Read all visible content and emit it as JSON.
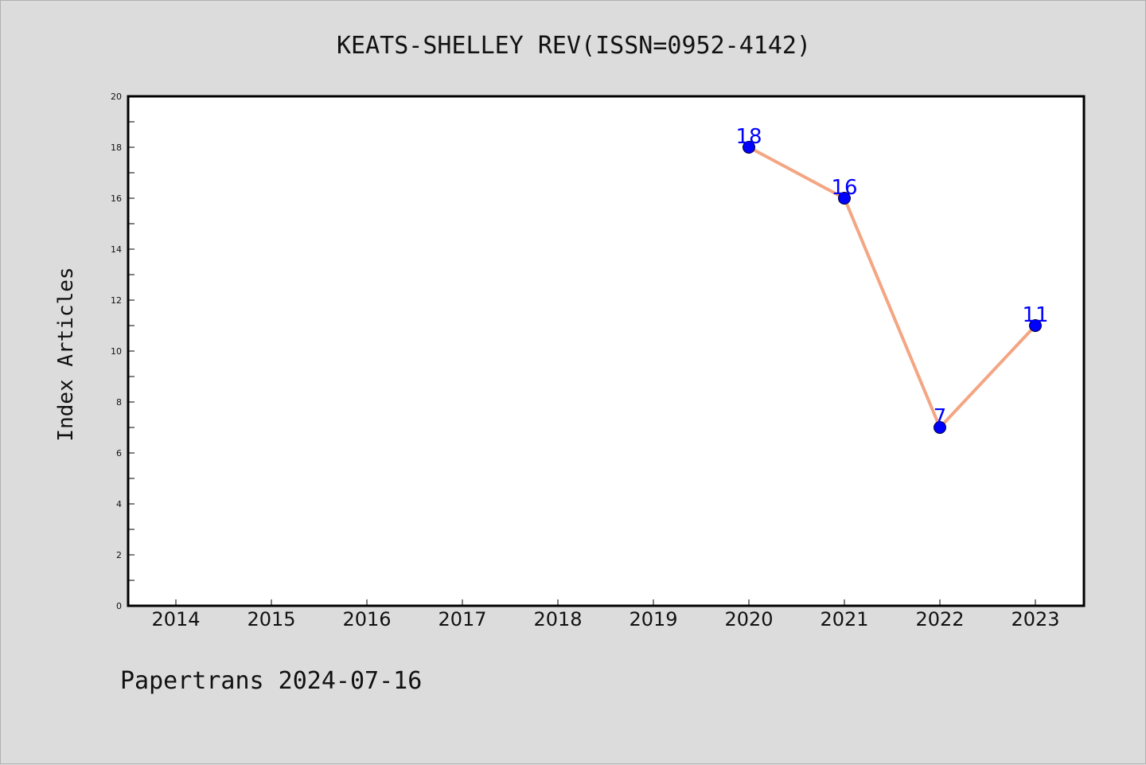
{
  "chart_data": {
    "type": "line",
    "title": "KEATS-SHELLEY REV(ISSN=0952-4142)",
    "xlabel": "",
    "ylabel": "Index Articles",
    "categories": [
      "2014",
      "2015",
      "2016",
      "2017",
      "2018",
      "2019",
      "2020",
      "2021",
      "2022",
      "2023"
    ],
    "series": [
      {
        "x": [
          "2020",
          "2021",
          "2022",
          "2023"
        ],
        "values": [
          18,
          16,
          7,
          11
        ]
      }
    ],
    "ylim": [
      0,
      20
    ],
    "yticks": [
      0,
      2,
      4,
      6,
      8,
      10,
      12,
      14,
      16,
      18,
      20
    ],
    "grid": false,
    "legend": "none",
    "colors": {
      "line": "#f4a582",
      "marker": "#0000ff",
      "data_label": "#0000ff"
    }
  },
  "footer": {
    "text": "Papertrans 2024-07-16"
  }
}
